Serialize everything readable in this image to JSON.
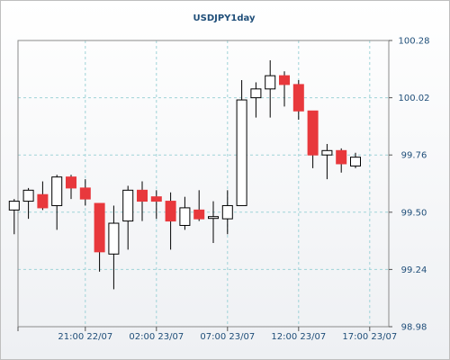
{
  "chart_data": {
    "type": "candlestick",
    "title": "USDJPY1day",
    "ylim": [
      98.98,
      100.28
    ],
    "y_ticks": [
      98.98,
      99.24,
      99.5,
      99.76,
      100.02,
      100.28
    ],
    "y_tick_labels": [
      "98.98",
      "99.24",
      "99.50",
      "99.76",
      "100.02",
      "100.28"
    ],
    "x_tick_labels": [
      "21:00 22/07",
      "02:00 23/07",
      "07:00 23/07",
      "12:00 23/07",
      "17:00 23/07"
    ],
    "x_tick_index": [
      5,
      10,
      15,
      20,
      25
    ],
    "grid": true,
    "colors": {
      "up_fill": "#ffffff",
      "down_fill": "#e8383c",
      "grid": "#9fd3d8",
      "axis_text": "#1f4e79",
      "wick": "#000000"
    },
    "candles": [
      {
        "open": 99.51,
        "high": 99.56,
        "low": 99.4,
        "close": 99.55
      },
      {
        "open": 99.55,
        "high": 99.61,
        "low": 99.47,
        "close": 99.6
      },
      {
        "open": 99.58,
        "high": 99.64,
        "low": 99.51,
        "close": 99.52
      },
      {
        "open": 99.53,
        "high": 99.67,
        "low": 99.42,
        "close": 99.66
      },
      {
        "open": 99.66,
        "high": 99.67,
        "low": 99.56,
        "close": 99.61
      },
      {
        "open": 99.61,
        "high": 99.65,
        "low": 99.53,
        "close": 99.56
      },
      {
        "open": 99.54,
        "high": 99.54,
        "low": 99.23,
        "close": 99.32
      },
      {
        "open": 99.31,
        "high": 99.53,
        "low": 99.15,
        "close": 99.45
      },
      {
        "open": 99.46,
        "high": 99.62,
        "low": 99.33,
        "close": 99.6
      },
      {
        "open": 99.6,
        "high": 99.64,
        "low": 99.46,
        "close": 99.55
      },
      {
        "open": 99.57,
        "high": 99.6,
        "low": 99.47,
        "close": 99.55
      },
      {
        "open": 99.55,
        "high": 99.59,
        "low": 99.33,
        "close": 99.46
      },
      {
        "open": 99.44,
        "high": 99.57,
        "low": 99.42,
        "close": 99.52
      },
      {
        "open": 99.51,
        "high": 99.6,
        "low": 99.46,
        "close": 99.47
      },
      {
        "open": 99.48,
        "high": 99.55,
        "low": 99.36,
        "close": 99.48
      },
      {
        "open": 99.47,
        "high": 99.6,
        "low": 99.4,
        "close": 99.53
      },
      {
        "open": 99.53,
        "high": 100.1,
        "low": 99.53,
        "close": 100.01
      },
      {
        "open": 100.02,
        "high": 100.09,
        "low": 99.93,
        "close": 100.06
      },
      {
        "open": 100.06,
        "high": 100.19,
        "low": 99.93,
        "close": 100.12
      },
      {
        "open": 100.12,
        "high": 100.14,
        "low": 99.98,
        "close": 100.08
      },
      {
        "open": 100.08,
        "high": 100.1,
        "low": 99.92,
        "close": 99.96
      },
      {
        "open": 99.96,
        "high": 99.96,
        "low": 99.7,
        "close": 99.76
      },
      {
        "open": 99.76,
        "high": 99.81,
        "low": 99.65,
        "close": 99.78
      },
      {
        "open": 99.78,
        "high": 99.79,
        "low": 99.68,
        "close": 99.72
      },
      {
        "open": 99.71,
        "high": 99.77,
        "low": 99.7,
        "close": 99.75
      }
    ]
  }
}
